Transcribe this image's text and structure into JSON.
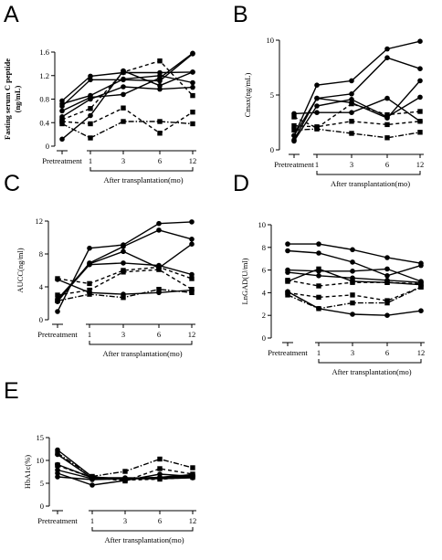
{
  "chart_data": [
    {
      "panel": "A",
      "type": "line",
      "categories": [
        "Pretreatment",
        "1",
        "3",
        "6",
        "12"
      ],
      "bracket_label": "After transplantation(mo)",
      "xlabel": "After transplantation(mo)",
      "ylabel": "Fasting serum C peptide (ng/mL)",
      "ylim": [
        0,
        1.6
      ],
      "yticks": [
        "0",
        "0.4",
        "0.8",
        "1.2",
        "1.6"
      ],
      "series": [
        {
          "marker": "circle",
          "dash": "solid",
          "values": [
            0.77,
            1.19,
            1.25,
            1.25,
            1.26
          ]
        },
        {
          "marker": "circle",
          "dash": "solid",
          "values": [
            0.72,
            0.86,
            1.14,
            1.2,
            1.08
          ]
        },
        {
          "marker": "circle",
          "dash": "solid",
          "values": [
            0.68,
            1.13,
            1.13,
            1.11,
            1.57
          ]
        },
        {
          "marker": "circle",
          "dash": "solid",
          "values": [
            0.6,
            0.83,
            0.88,
            1.16,
            1.58
          ]
        },
        {
          "marker": "circle",
          "dash": "solid",
          "values": [
            0.5,
            0.8,
            1.01,
            0.97,
            1.0
          ]
        },
        {
          "marker": "circle",
          "dash": "solid",
          "values": [
            0.12,
            0.52,
            1.28,
            1.03,
            1.26
          ]
        },
        {
          "marker": "square",
          "dash": "dash",
          "values": [
            0.45,
            0.64,
            1.26,
            1.45,
            0.86
          ]
        },
        {
          "marker": "square",
          "dash": "dash",
          "values": [
            0.42,
            0.38,
            0.65,
            0.22,
            0.58
          ]
        },
        {
          "marker": "square",
          "dash": "dashdot",
          "values": [
            0.38,
            0.14,
            0.42,
            0.42,
            0.38
          ]
        }
      ]
    },
    {
      "panel": "B",
      "type": "line",
      "categories": [
        "Pretreatment",
        "1",
        "3",
        "6",
        "12"
      ],
      "bracket_label": "After transplantation(mo)",
      "xlabel": "After transplantation(mo)",
      "ylabel": "Cmax(ng/mL)",
      "ylim": [
        0,
        10
      ],
      "yticks": [
        "0",
        "5",
        "10"
      ],
      "series": [
        {
          "marker": "circle",
          "dash": "solid",
          "values": [
            1.3,
            5.9,
            6.3,
            9.2,
            9.9
          ]
        },
        {
          "marker": "circle",
          "dash": "solid",
          "values": [
            0.9,
            4.7,
            5.1,
            8.4,
            7.4
          ]
        },
        {
          "marker": "circle",
          "dash": "solid",
          "values": [
            1.3,
            4.7,
            4.3,
            2.9,
            6.3
          ]
        },
        {
          "marker": "circle",
          "dash": "solid",
          "values": [
            0.8,
            4.0,
            4.6,
            3.0,
            4.8
          ]
        },
        {
          "marker": "circle",
          "dash": "solid",
          "values": [
            3.3,
            3.4,
            3.4,
            4.7,
            2.6
          ]
        },
        {
          "marker": "square",
          "dash": "dash",
          "values": [
            3.0,
            2.0,
            4.2,
            3.2,
            3.5
          ]
        },
        {
          "marker": "square",
          "dash": "dash",
          "values": [
            2.2,
            2.1,
            2.6,
            2.3,
            2.6
          ]
        },
        {
          "marker": "square",
          "dash": "dashdot",
          "values": [
            1.8,
            1.9,
            1.5,
            1.1,
            1.6
          ]
        }
      ]
    },
    {
      "panel": "C",
      "type": "line",
      "categories": [
        "Pretreatment",
        "1",
        "3",
        "6",
        "12"
      ],
      "bracket_label": "After transplantation(mo)",
      "xlabel": "After transplantation(mo)",
      "ylabel": "AUCC(ng/ml)",
      "ylim": [
        0,
        12
      ],
      "yticks": [
        "0",
        "4",
        "8",
        "12"
      ],
      "series": [
        {
          "marker": "circle",
          "dash": "solid",
          "values": [
            1.0,
            8.7,
            9.1,
            11.7,
            11.9
          ]
        },
        {
          "marker": "circle",
          "dash": "solid",
          "values": [
            2.2,
            6.9,
            8.9,
            10.9,
            9.8
          ]
        },
        {
          "marker": "circle",
          "dash": "solid",
          "values": [
            2.5,
            6.8,
            8.3,
            6.3,
            9.2
          ]
        },
        {
          "marker": "circle",
          "dash": "solid",
          "values": [
            2.3,
            6.7,
            6.9,
            6.6,
            5.5
          ]
        },
        {
          "marker": "circle",
          "dash": "solid",
          "values": [
            4.9,
            3.3,
            3.1,
            3.3,
            3.6
          ]
        },
        {
          "marker": "square",
          "dash": "dash",
          "values": [
            5.0,
            4.4,
            6.0,
            6.4,
            5.0
          ]
        },
        {
          "marker": "square",
          "dash": "dash",
          "values": [
            3.0,
            3.6,
            5.8,
            6.1,
            3.7
          ]
        },
        {
          "marker": "square",
          "dash": "dashdot",
          "values": [
            2.3,
            3.1,
            2.7,
            3.7,
            3.3
          ]
        }
      ]
    },
    {
      "panel": "D",
      "type": "line",
      "categories": [
        "Pretreatment",
        "1",
        "3",
        "6",
        "12"
      ],
      "bracket_label": "After transplantation(mo)",
      "xlabel": "After transplantation(mo)",
      "ylabel": "LnGAD(U/ml)",
      "ylim": [
        0,
        10
      ],
      "yticks": [
        "0",
        "2",
        "4",
        "6",
        "8",
        "10"
      ],
      "series": [
        {
          "marker": "circle",
          "dash": "solid",
          "values": [
            8.3,
            8.3,
            7.8,
            7.1,
            6.6
          ]
        },
        {
          "marker": "circle",
          "dash": "solid",
          "values": [
            7.7,
            7.5,
            6.7,
            5.5,
            6.4
          ]
        },
        {
          "marker": "circle",
          "dash": "solid",
          "values": [
            6.0,
            5.9,
            5.9,
            6.1,
            5.0
          ]
        },
        {
          "marker": "circle",
          "dash": "solid",
          "values": [
            5.8,
            5.5,
            5.3,
            5.1,
            4.9
          ]
        },
        {
          "marker": "circle",
          "dash": "solid",
          "values": [
            4.1,
            2.6,
            2.1,
            2.0,
            2.4
          ]
        },
        {
          "marker": "square",
          "dash": "solid",
          "values": [
            5.0,
            6.1,
            5.0,
            4.9,
            4.7
          ]
        },
        {
          "marker": "square",
          "dash": "dash",
          "values": [
            5.1,
            4.6,
            4.9,
            4.9,
            4.8
          ]
        },
        {
          "marker": "square",
          "dash": "dash",
          "values": [
            4.0,
            3.6,
            3.8,
            3.3,
            4.5
          ]
        },
        {
          "marker": "square",
          "dash": "dashdot",
          "values": [
            3.8,
            2.6,
            3.1,
            3.1,
            4.5
          ]
        }
      ]
    },
    {
      "panel": "E",
      "type": "line",
      "categories": [
        "Pretreatment",
        "1",
        "3",
        "6",
        "12"
      ],
      "bracket_label": "After transplantation(mo)",
      "xlabel": "After transplantation(mo)",
      "ylabel": "HbA1c(%)",
      "ylim": [
        0,
        15
      ],
      "yticks": [
        "0",
        "5",
        "10",
        "15"
      ],
      "series": [
        {
          "marker": "circle",
          "dash": "solid",
          "values": [
            12.3,
            6.4,
            5.9,
            6.3,
            6.9
          ]
        },
        {
          "marker": "circle",
          "dash": "solid",
          "values": [
            11.3,
            6.1,
            6.0,
            6.3,
            6.6
          ]
        },
        {
          "marker": "circle",
          "dash": "solid",
          "values": [
            9.1,
            6.2,
            6.2,
            6.1,
            6.6
          ]
        },
        {
          "marker": "circle",
          "dash": "solid",
          "values": [
            7.9,
            6.0,
            6.1,
            6.2,
            6.4
          ]
        },
        {
          "marker": "circle",
          "dash": "solid",
          "values": [
            7.2,
            4.6,
            5.6,
            7.0,
            6.5
          ]
        },
        {
          "marker": "circle",
          "dash": "solid",
          "values": [
            6.4,
            5.8,
            6.0,
            6.0,
            6.2
          ]
        },
        {
          "marker": "square",
          "dash": "dashdot",
          "values": [
            11.6,
            6.5,
            7.6,
            10.3,
            8.4
          ]
        },
        {
          "marker": "square",
          "dash": "dash",
          "values": [
            9.0,
            6.3,
            5.5,
            8.2,
            7.0
          ]
        },
        {
          "marker": "square",
          "dash": "dash",
          "values": [
            8.9,
            6.2,
            5.7,
            5.9,
            6.3
          ]
        }
      ]
    }
  ]
}
